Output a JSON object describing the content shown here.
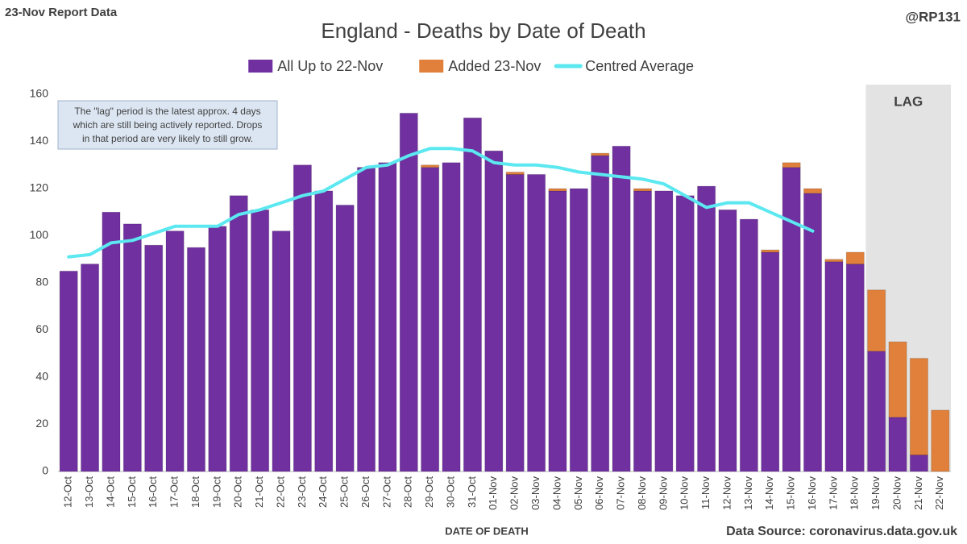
{
  "header": {
    "report": "23-Nov Report Data",
    "handle": "@RP131"
  },
  "chart_data": {
    "type": "bar",
    "stacked": true,
    "title": "England - Deaths by Date of Death",
    "x_label": "DATE OF DEATH",
    "source": "Data Source: coronavirus.data.gov.uk",
    "categories": [
      "12-Oct",
      "13-Oct",
      "14-Oct",
      "15-Oct",
      "16-Oct",
      "17-Oct",
      "18-Oct",
      "19-Oct",
      "20-Oct",
      "21-Oct",
      "22-Oct",
      "23-Oct",
      "24-Oct",
      "25-Oct",
      "26-Oct",
      "27-Oct",
      "28-Oct",
      "29-Oct",
      "30-Oct",
      "31-Oct",
      "01-Nov",
      "02-Nov",
      "03-Nov",
      "04-Nov",
      "05-Nov",
      "06-Nov",
      "07-Nov",
      "08-Nov",
      "09-Nov",
      "10-Nov",
      "11-Nov",
      "12-Nov",
      "13-Nov",
      "14-Nov",
      "15-Nov",
      "16-Nov",
      "17-Nov",
      "18-Nov",
      "19-Nov",
      "20-Nov",
      "21-Nov",
      "22-Nov"
    ],
    "series": [
      {
        "name": "All Up to 22-Nov",
        "color": "#7030a0",
        "values": [
          85,
          88,
          110,
          105,
          96,
          102,
          95,
          104,
          117,
          111,
          102,
          130,
          119,
          113,
          129,
          131,
          152,
          129,
          131,
          150,
          136,
          126,
          126,
          119,
          120,
          134,
          138,
          119,
          119,
          117,
          121,
          111,
          107,
          93,
          129,
          118,
          89,
          88,
          51,
          23,
          7,
          0
        ]
      },
      {
        "name": "Added 23-Nov",
        "color": "#e0803a",
        "values": [
          0,
          0,
          0,
          0,
          0,
          0,
          0,
          0,
          0,
          0,
          0,
          0,
          0,
          0,
          0,
          0,
          0,
          1,
          0,
          0,
          0,
          1,
          0,
          1,
          0,
          1,
          0,
          1,
          0,
          0,
          0,
          0,
          0,
          1,
          2,
          2,
          1,
          5,
          26,
          32,
          41,
          26
        ]
      },
      {
        "name": "Centred Average",
        "type": "line",
        "color": "#5ce8f0",
        "values": [
          91,
          92,
          97,
          98,
          101,
          104,
          104,
          104,
          109,
          111,
          114,
          117,
          119,
          124,
          129,
          130,
          134,
          137,
          137,
          136,
          131,
          130,
          130,
          129,
          127,
          126,
          125,
          124,
          122,
          117,
          112,
          114,
          114,
          110,
          106,
          102,
          null,
          null,
          null,
          null,
          null,
          null
        ]
      }
    ],
    "ylim": [
      0,
      160
    ],
    "yticks": [
      0,
      20,
      40,
      60,
      80,
      100,
      120,
      140,
      160
    ],
    "grid": false,
    "legend": "top",
    "lag": {
      "label": "LAG",
      "from": "19-Nov"
    },
    "annotation": [
      "The \"lag\" period is the latest approx. 4 days",
      "which are still being actively reported.  Drops",
      "in that period are very likely to still grow."
    ]
  }
}
